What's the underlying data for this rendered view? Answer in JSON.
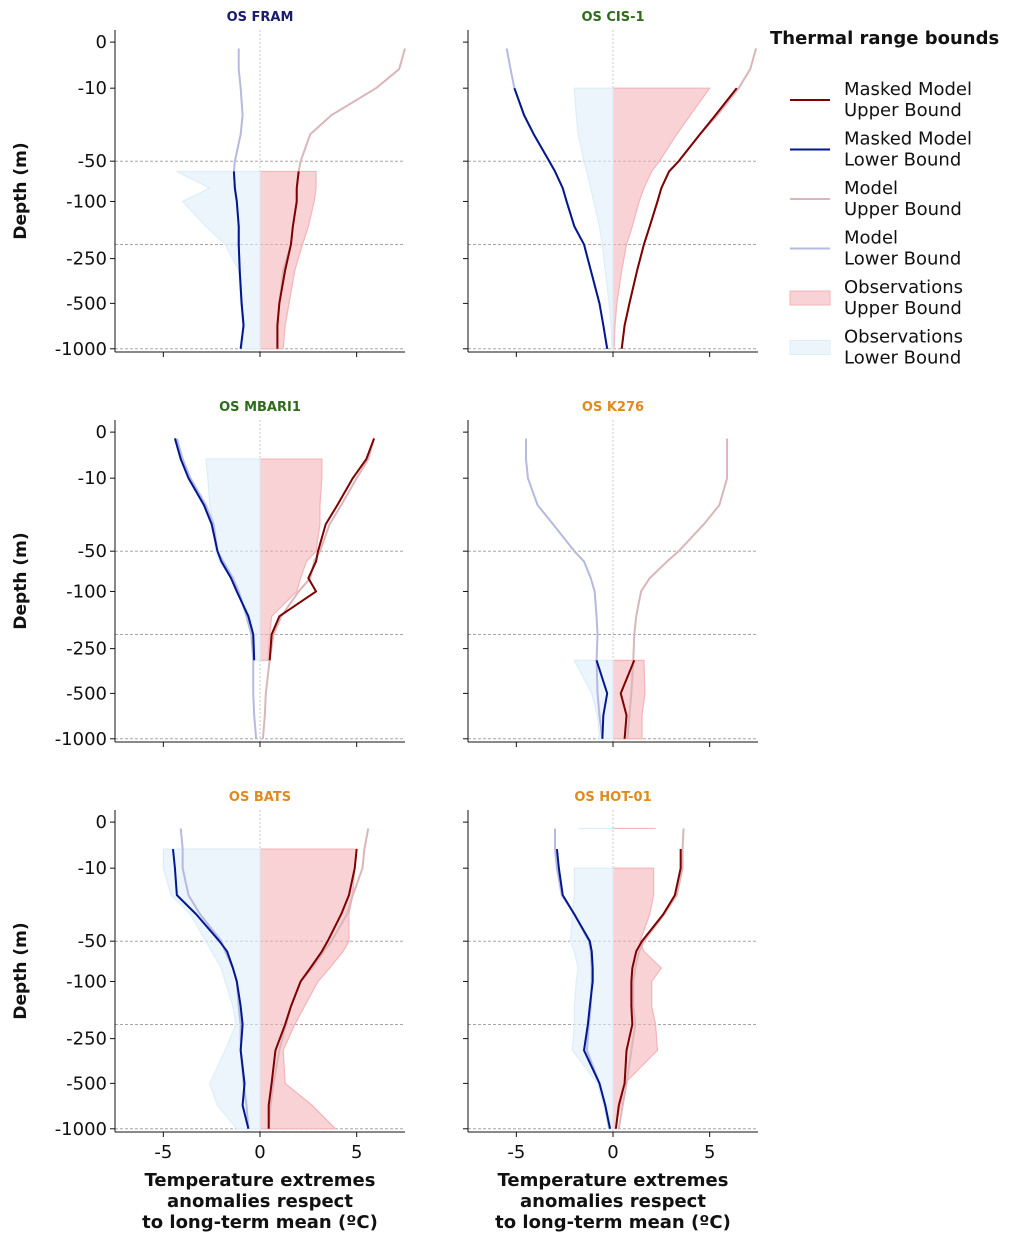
{
  "chart_data": {
    "type": "profile",
    "legend_title": "Thermal range bounds",
    "ylabel": "Depth (m)",
    "xlabel": "Temperature extremes\nanomalies respect\nto long-term mean (ºC)",
    "xlim": [
      -7.5,
      7.5
    ],
    "xticks": [
      -5,
      0,
      5
    ],
    "ylim": [
      -1050,
      2
    ],
    "yticks": [
      0,
      -10,
      -50,
      -100,
      -250,
      -500,
      -1000
    ],
    "hlines": [
      -50,
      -200,
      -1000
    ],
    "vline": 0,
    "y": [
      -1,
      -5,
      -10,
      -20,
      -30,
      -50,
      -60,
      -80,
      -100,
      -150,
      -200,
      -300,
      -500,
      -700,
      -1000
    ],
    "series": [
      {
        "name": "Masked Model\nUpper Bound",
        "color": "#7f0000",
        "kind": "line"
      },
      {
        "name": "Masked Model\nLower Bound",
        "color": "#00178f",
        "kind": "line"
      },
      {
        "name": "Model\nUpper Bound",
        "color": "#d9b6ba",
        "kind": "line"
      },
      {
        "name": "Model\nLower Bound",
        "color": "#b6b9e0",
        "kind": "line"
      },
      {
        "name": "Observations\nUpper Bound",
        "color": "#f4b4b8",
        "kind": "area"
      },
      {
        "name": "Observations\nLower Bound",
        "color": "#ddeef9",
        "kind": "area"
      }
    ],
    "panels": [
      {
        "title": "OS FRAM",
        "title_color": "#1a1a6e",
        "values": [
          [
            null,
            null,
            null,
            null,
            null,
            null,
            2.0,
            1.9,
            1.9,
            1.7,
            1.6,
            1.3,
            1.0,
            0.9,
            0.9
          ],
          [
            null,
            null,
            null,
            null,
            null,
            null,
            -1.35,
            -1.3,
            -1.2,
            -1.1,
            -1.1,
            -1.05,
            -0.95,
            -0.85,
            -1.0
          ],
          [
            7.5,
            7.2,
            6.0,
            3.7,
            2.6,
            2.1,
            2.0,
            1.9,
            1.9,
            1.7,
            1.6,
            1.2,
            1.0,
            0.9,
            0.9
          ],
          [
            -1.1,
            -1.1,
            -1.0,
            -0.9,
            -1.0,
            -1.3,
            -1.35,
            -1.3,
            -1.2,
            -1.1,
            -1.1,
            -1.05,
            -0.95,
            -0.85,
            -1.0
          ],
          [
            null,
            null,
            null,
            null,
            null,
            null,
            2.9,
            2.9,
            2.8,
            2.5,
            2.2,
            1.8,
            1.5,
            1.3,
            1.2
          ],
          [
            null,
            null,
            null,
            null,
            null,
            null,
            -4.3,
            -2.6,
            -4.0,
            -2.8,
            -1.8,
            -1.1,
            -1.0,
            -0.9,
            -0.9
          ]
        ]
      },
      {
        "title": "OS CIS-1",
        "title_color": "#2e6b1c",
        "values": [
          [
            null,
            null,
            6.4,
            5.3,
            4.5,
            3.4,
            2.9,
            2.5,
            2.3,
            1.9,
            1.6,
            1.25,
            0.85,
            0.6,
            0.45
          ],
          [
            null,
            null,
            -5.1,
            -4.6,
            -4.1,
            -3.3,
            -3.0,
            -2.6,
            -2.4,
            -2.0,
            -1.5,
            -1.15,
            -0.7,
            -0.5,
            -0.3
          ],
          [
            7.4,
            7.1,
            6.5,
            5.4,
            4.5,
            3.4,
            2.9,
            2.5,
            2.3,
            1.9,
            1.6,
            1.25,
            0.85,
            0.6,
            0.45
          ],
          [
            -5.5,
            -5.3,
            -5.1,
            -4.6,
            -4.1,
            -3.3,
            -3.0,
            -2.6,
            -2.4,
            -2.0,
            -1.5,
            -1.15,
            -0.7,
            -0.5,
            -0.3
          ],
          [
            null,
            null,
            5.0,
            4.0,
            3.3,
            2.4,
            2.0,
            1.6,
            1.35,
            1.0,
            0.7,
            0.45,
            0.2,
            0.1,
            0.05
          ],
          [
            null,
            null,
            -2.0,
            -1.9,
            -1.8,
            -1.5,
            -1.35,
            -1.15,
            -1.0,
            -0.7,
            -0.55,
            -0.4,
            -0.2,
            -0.1,
            -0.05
          ]
        ]
      },
      {
        "title": "OS MBARI1",
        "title_color": "#2e6b1c",
        "values": [
          [
            5.9,
            5.5,
            4.8,
            4.0,
            3.4,
            3.0,
            2.9,
            2.5,
            2.9,
            1.0,
            0.6,
            0.5,
            null,
            null,
            null
          ],
          [
            -4.4,
            -4.1,
            -3.7,
            -2.9,
            -2.5,
            -2.2,
            -2.0,
            -1.5,
            -1.2,
            -0.6,
            -0.35,
            -0.3,
            null,
            null,
            null
          ],
          [
            5.9,
            5.6,
            5.0,
            4.2,
            3.6,
            3.1,
            2.8,
            2.6,
            2.0,
            1.1,
            0.7,
            0.5,
            0.3,
            0.25,
            0.15
          ],
          [
            -4.3,
            -4.0,
            -3.6,
            -2.8,
            -2.4,
            -2.2,
            -1.9,
            -1.4,
            -1.1,
            -0.7,
            -0.45,
            -0.35,
            -0.35,
            -0.3,
            -0.2
          ],
          [
            null,
            3.2,
            3.2,
            3.1,
            3.1,
            2.9,
            2.4,
            2.1,
            1.9,
            0.6,
            0.5,
            0.4,
            null,
            null,
            null
          ],
          [
            null,
            -2.8,
            -2.7,
            -2.6,
            -2.4,
            -2.3,
            -2.1,
            -1.5,
            -1.1,
            -0.5,
            -0.3,
            -0.2,
            null,
            null,
            null
          ]
        ]
      },
      {
        "title": "OS K276",
        "title_color": "#e08a1e",
        "values": [
          [
            null,
            null,
            null,
            null,
            null,
            null,
            null,
            null,
            null,
            null,
            null,
            1.1,
            0.4,
            0.7,
            0.6
          ],
          [
            null,
            null,
            null,
            null,
            null,
            null,
            null,
            null,
            null,
            null,
            null,
            -0.85,
            -0.3,
            -0.5,
            -0.55
          ],
          [
            5.9,
            5.9,
            5.9,
            5.5,
            4.7,
            3.4,
            2.8,
            1.9,
            1.45,
            1.2,
            1.1,
            1.05,
            0.95,
            0.85,
            0.75
          ],
          [
            -4.5,
            -4.5,
            -4.4,
            -3.9,
            -3.1,
            -2.0,
            -1.5,
            -1.15,
            -0.95,
            -0.85,
            -0.8,
            -0.85,
            -0.8,
            -0.7,
            -0.55
          ],
          [
            null,
            null,
            null,
            null,
            null,
            null,
            null,
            null,
            null,
            null,
            null,
            1.6,
            1.65,
            1.5,
            1.5
          ],
          [
            null,
            null,
            null,
            null,
            null,
            null,
            null,
            null,
            null,
            null,
            null,
            -2.0,
            -1.1,
            -0.8,
            -0.7
          ]
        ]
      },
      {
        "title": "OS BATS",
        "title_color": "#e08a1e",
        "values": [
          [
            null,
            5.0,
            4.9,
            4.6,
            4.2,
            3.5,
            3.2,
            2.6,
            2.1,
            1.6,
            1.3,
            0.8,
            0.6,
            0.45,
            0.45
          ],
          [
            null,
            -4.5,
            -4.4,
            -4.3,
            -3.3,
            -2.1,
            -1.7,
            -1.4,
            -1.2,
            -1.0,
            -0.9,
            -1.0,
            -0.8,
            -0.9,
            -0.6
          ],
          [
            5.6,
            5.4,
            5.3,
            4.8,
            4.5,
            3.7,
            3.3,
            2.7,
            2.1,
            1.6,
            1.35,
            1.0,
            0.7,
            0.55,
            0.45
          ],
          [
            -4.1,
            -4.0,
            -4.0,
            -3.7,
            -3.1,
            -2.0,
            -1.8,
            -1.4,
            -1.2,
            -1.1,
            -1.0,
            -1.0,
            -0.85,
            -0.7,
            -0.6
          ],
          [
            null,
            5.0,
            4.9,
            4.8,
            4.6,
            4.6,
            4.3,
            3.6,
            3.0,
            2.3,
            1.8,
            1.2,
            1.3,
            2.7,
            3.9
          ],
          [
            null,
            -5.0,
            -5.0,
            -4.6,
            -3.6,
            -2.8,
            -2.5,
            -2.0,
            -1.8,
            -1.4,
            -1.25,
            -1.8,
            -2.6,
            -2.2,
            -1.2
          ]
        ]
      },
      {
        "title": "OS HOT-01",
        "title_color": "#e08a1e",
        "values": [
          [
            null,
            3.5,
            3.5,
            3.2,
            2.6,
            1.5,
            1.2,
            1.0,
            0.95,
            0.95,
            1.0,
            0.7,
            0.6,
            0.3,
            0.15
          ],
          [
            null,
            -2.9,
            -2.8,
            -2.6,
            -2.0,
            -1.2,
            -1.1,
            -1.05,
            -1.05,
            -1.2,
            -1.3,
            -1.5,
            -0.7,
            -0.4,
            -0.15
          ],
          [
            3.65,
            3.6,
            3.6,
            3.3,
            2.65,
            1.6,
            1.35,
            1.15,
            1.05,
            1.05,
            1.15,
            0.95,
            0.7,
            0.5,
            0.3
          ],
          [
            -3.0,
            -3.0,
            -2.9,
            -2.65,
            -2.0,
            -1.25,
            -1.15,
            -1.1,
            -1.1,
            -1.15,
            -1.25,
            -1.35,
            -0.7,
            -0.4,
            -0.2
          ],
          [
            2.2,
            null,
            2.1,
            2.1,
            1.9,
            1.4,
            1.6,
            2.5,
            2.0,
            2.0,
            2.2,
            2.3,
            0.6,
            0.4,
            0.1
          ],
          [
            -1.8,
            null,
            -2.0,
            -2.0,
            -2.1,
            -2.2,
            -2.0,
            -1.8,
            -1.9,
            -2.0,
            -2.0,
            -2.1,
            -0.8,
            -0.5,
            -0.2
          ]
        ]
      }
    ]
  }
}
